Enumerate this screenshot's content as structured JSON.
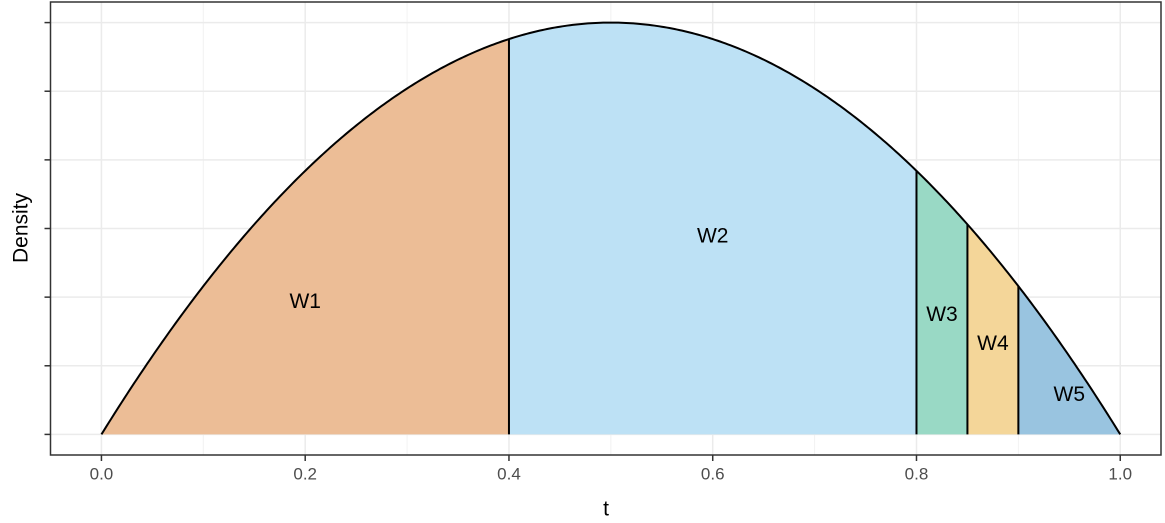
{
  "chart_data": {
    "type": "area",
    "x_label": "t",
    "y_label": "Density",
    "density": {
      "shape1": 2,
      "shape2": 2
    },
    "regions": [
      {
        "name": "W1",
        "from": 0,
        "to": 0.4,
        "color": "#ecbd96"
      },
      {
        "name": "W2",
        "from": 0.4,
        "to": 0.8,
        "color": "#bde1f5"
      },
      {
        "name": "W3",
        "from": 0.8,
        "to": 0.85,
        "color": "#99d9c5"
      },
      {
        "name": "W4",
        "from": 0.85,
        "to": 0.9,
        "color": "#f4d699"
      },
      {
        "name": "W5",
        "from": 0.9,
        "to": 1,
        "color": "#99c4e0"
      }
    ],
    "xlim": [
      -0.05,
      1.04
    ],
    "xticks": [
      {
        "value": 0,
        "label": "0.0"
      },
      0.2,
      0.4,
      0.6,
      0.8,
      {
        "value": 1,
        "label": "1.0"
      }
    ],
    "xminor": [
      0.1,
      0.3,
      0.5,
      0.7,
      0.9
    ],
    "ylim": [
      -0.075,
      1.575
    ],
    "yticks": [
      0,
      0.25,
      0.5,
      0.75,
      1,
      1.25,
      1.5
    ],
    "y_tick_labels": false,
    "grid": true
  }
}
